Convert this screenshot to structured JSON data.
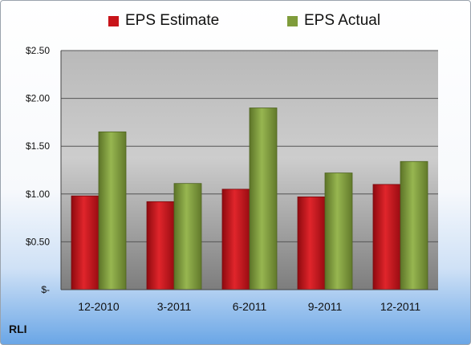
{
  "chart_data": {
    "type": "bar",
    "categories": [
      "12-2010",
      "3-2011",
      "6-2011",
      "9-2011",
      "12-2011"
    ],
    "series": [
      {
        "name": "EPS Estimate",
        "values": [
          0.98,
          0.92,
          1.05,
          0.97,
          1.1
        ],
        "color": "#c8141a"
      },
      {
        "name": "EPS Actual",
        "values": [
          1.65,
          1.11,
          1.9,
          1.22,
          1.34
        ],
        "color": "#7f9c3b"
      }
    ],
    "ylim": [
      0,
      2.5
    ],
    "yticks": [
      0,
      0.5,
      1.0,
      1.5,
      2.0,
      2.5
    ],
    "ytick_labels": [
      "$-",
      "$0.50",
      "$1.00",
      "$1.50",
      "$2.00",
      "$2.50"
    ],
    "grid": true,
    "legend": "top",
    "title": "",
    "xlabel": "",
    "ylabel": ""
  },
  "ticker": "RLI"
}
